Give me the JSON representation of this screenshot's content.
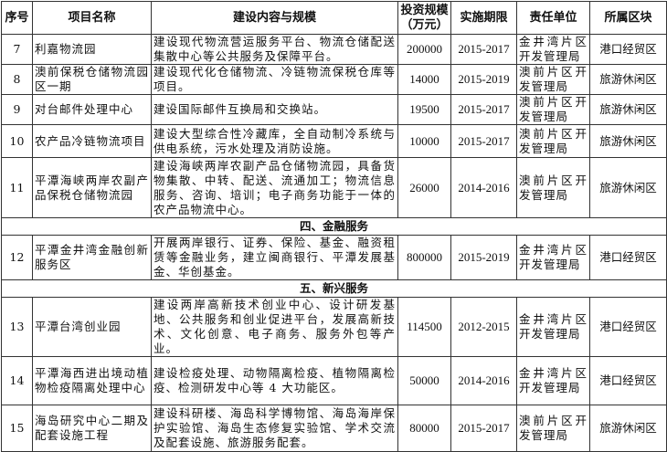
{
  "headers": [
    "序号",
    "项目名称",
    "建设内容与规模",
    "投资规模（万元）",
    "实施期限",
    "责任单位",
    "所属区块"
  ],
  "rows": [
    {
      "type": "item",
      "no": "7",
      "name": "利嘉物流园",
      "content": "建设现代物流营运服务平台、物流仓储配送集散中心等公共服务及保障平台。",
      "investment": "200000",
      "period": "2015-2017",
      "unit": "金井湾片区开发管理局",
      "zone": "港口经贸区"
    },
    {
      "type": "item",
      "no": "8",
      "name": "澳前保税仓储物流园区一期",
      "content": "建设现代化仓储物流、冷链物流保税仓库等项目。",
      "investment": "14000",
      "period": "2015-2019",
      "unit": "澳前片区开发管理局",
      "zone": "旅游休闲区"
    },
    {
      "type": "item",
      "no": "9",
      "name": "对台邮件处理中心",
      "content": "建设国际邮件互换局和交换站。",
      "investment": "19500",
      "period": "2015-2017",
      "unit": "澳前片区开发管理局",
      "zone": "旅游休闲区"
    },
    {
      "type": "item",
      "no": "10",
      "name": "农产品冷链物流项目",
      "content": "建设大型综合性冷藏库，全自动制冷系统与供电系统，污水处理及消防设施。",
      "investment": "10000",
      "period": "2015-2017",
      "unit": "澳前片区开发管理局",
      "zone": "旅游休闲区"
    },
    {
      "type": "item",
      "no": "11",
      "name": "平潭海峡两岸农副产品保税仓储物流园",
      "content": "建设海峡两岸农副产品仓储物流园，具备货物集散、中转、配送、流通加工；物流信息服务、咨询、培训；电子商务功能于一体的农产品物流中心。",
      "investment": "26000",
      "period": "2014-2016",
      "unit": "澳前片区开发管理局",
      "zone": "旅游休闲区"
    },
    {
      "type": "section",
      "title": "四、金融服务"
    },
    {
      "type": "item",
      "no": "12",
      "name": "平潭金井湾金融创新服务区",
      "content": "开展两岸银行、证券、保险、基金、融资租赁等金融业务，建立闽商银行、平潭发展基金、华创基金。",
      "investment": "800000",
      "period": "2015-2019",
      "unit": "金井湾片区开发管理局",
      "zone": "港口经贸区"
    },
    {
      "type": "section",
      "title": "五、新兴服务"
    },
    {
      "type": "item",
      "no": "13",
      "name": "平潭台湾创业园",
      "content": "建设两岸高新技术创业中心、设计研发基地、公共服务和创业促进平台，发展高新技术、文化创意、电子商务、服务外包等产业。",
      "investment": "114500",
      "period": "2012-2015",
      "unit": "金井湾片区开发管理局",
      "zone": "港口经贸区"
    },
    {
      "type": "item",
      "no": "14",
      "name": "平潭海西进出境动植物检疫隔离处理中心",
      "content": "建设检疫处理、动物隔离检疫、植物隔离检疫、检测研发中心等 4 大功能区。",
      "investment": "50000",
      "period": "2014-2016",
      "unit": "金井湾片区开发管理局",
      "zone": "港口经贸区"
    },
    {
      "type": "item",
      "no": "15",
      "name": "海岛研究中心二期及配套设施工程",
      "content": "建设科研楼、海岛科学博物馆、海岛海岸保护实验馆、海岛生态修复实验馆、学术交流及配套设施、旅游服务配套。",
      "investment": "80000",
      "period": "2015-2017",
      "unit": "澳前片区开发管理局",
      "zone": "旅游休闲区"
    }
  ]
}
